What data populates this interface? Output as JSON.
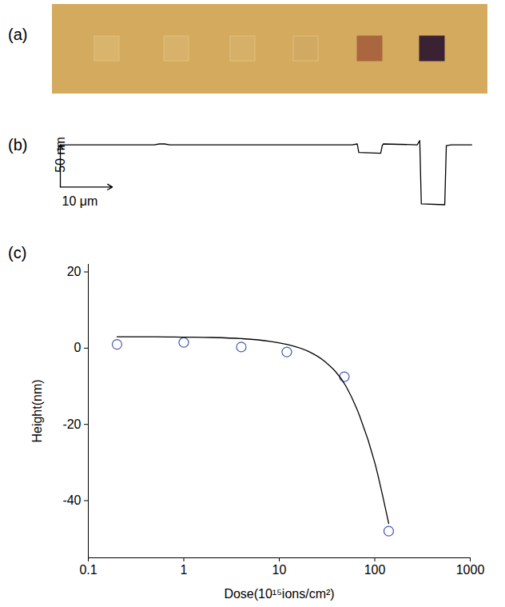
{
  "chart_data": [
    {
      "type": "image",
      "panel": "(a)",
      "color": "#d4aa5e",
      "colors": [
        "#d9b46c",
        "#d8b26a",
        "#d6b069",
        "#d2a963",
        "#a9663f",
        "#3b2233"
      ]
    },
    {
      "type": "line",
      "panel": "(b)",
      "color": "#000000",
      "tick_labels": false,
      "x": [
        0,
        18,
        19,
        20,
        21,
        56,
        57,
        57.3,
        61.5,
        61.8,
        62,
        68.5,
        69,
        69.3,
        73.8,
        74.1,
        75,
        79
      ],
      "values": [
        0,
        0,
        1,
        1,
        0,
        0,
        1,
        -9,
        -10,
        -1,
        1,
        0,
        5,
        -70,
        -71,
        -1,
        0,
        0
      ],
      "scale_bars": [
        {
          "label": "50 nm",
          "value": 50,
          "axis": "y"
        },
        {
          "label": "10 μm",
          "value": 10,
          "axis": "x"
        }
      ]
    },
    {
      "type": "scatter",
      "panel": "(c)",
      "x_label": "Dose(10¹⁵ions/cm²)",
      "y_label": "Height(nm)",
      "log": "x",
      "xlim": [
        0.1,
        1000
      ],
      "xticks": [
        0.1,
        1,
        10,
        100,
        1000
      ],
      "ylim": [
        -55,
        22
      ],
      "yticks": [
        -40,
        -20,
        0,
        20
      ],
      "series": [
        {
          "type": "scatter",
          "marker": "circle",
          "color": "#4a5ab0",
          "x": [
            0.2,
            1,
            4,
            12,
            48,
            140
          ],
          "values": [
            1,
            1.5,
            0.3,
            -1,
            -7.5,
            -48
          ]
        },
        {
          "type": "line",
          "line_style": "solid",
          "color": "#000000",
          "x": [
            0.2,
            0.5,
            1,
            2,
            4,
            8,
            12,
            20,
            30,
            50,
            70,
            100,
            140
          ],
          "values": [
            3,
            3,
            2.9,
            2.8,
            2.5,
            1.8,
            1,
            -0.8,
            -3.5,
            -10,
            -18,
            -30,
            -46
          ]
        }
      ]
    }
  ]
}
